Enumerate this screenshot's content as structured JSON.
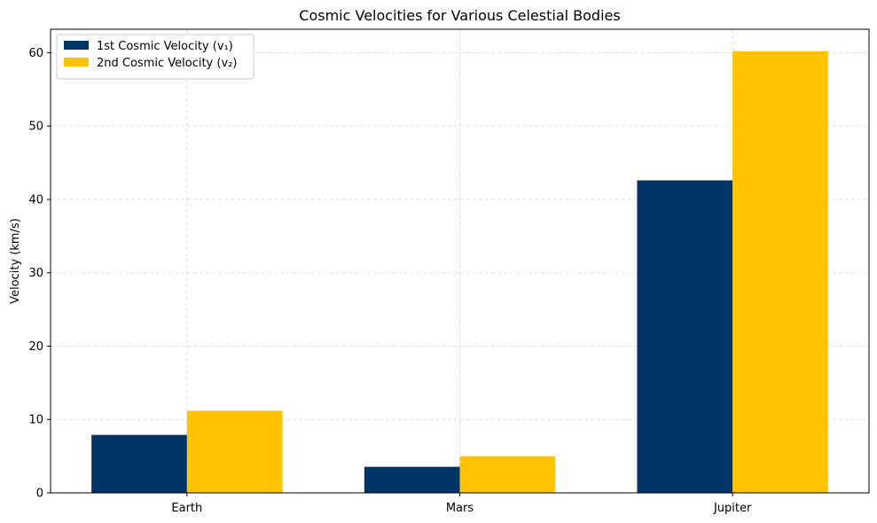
{
  "chart_data": {
    "type": "bar",
    "title": "Cosmic Velocities for Various Celestial Bodies",
    "xlabel": "",
    "ylabel": "Velocity (km/s)",
    "categories": [
      "Earth",
      "Mars",
      "Jupiter"
    ],
    "series": [
      {
        "name": "1st Cosmic Velocity (v₁)",
        "values": [
          7.9,
          3.55,
          42.6
        ],
        "color": "#003366"
      },
      {
        "name": "2nd Cosmic Velocity (v₂)",
        "values": [
          11.2,
          5.0,
          60.2
        ],
        "color": "#FFC300"
      }
    ],
    "ylim": [
      0,
      63.2
    ],
    "yticks": [
      "0",
      "10",
      "20",
      "30",
      "40",
      "50",
      "60"
    ],
    "grid": true,
    "legend_position": "top-left"
  }
}
